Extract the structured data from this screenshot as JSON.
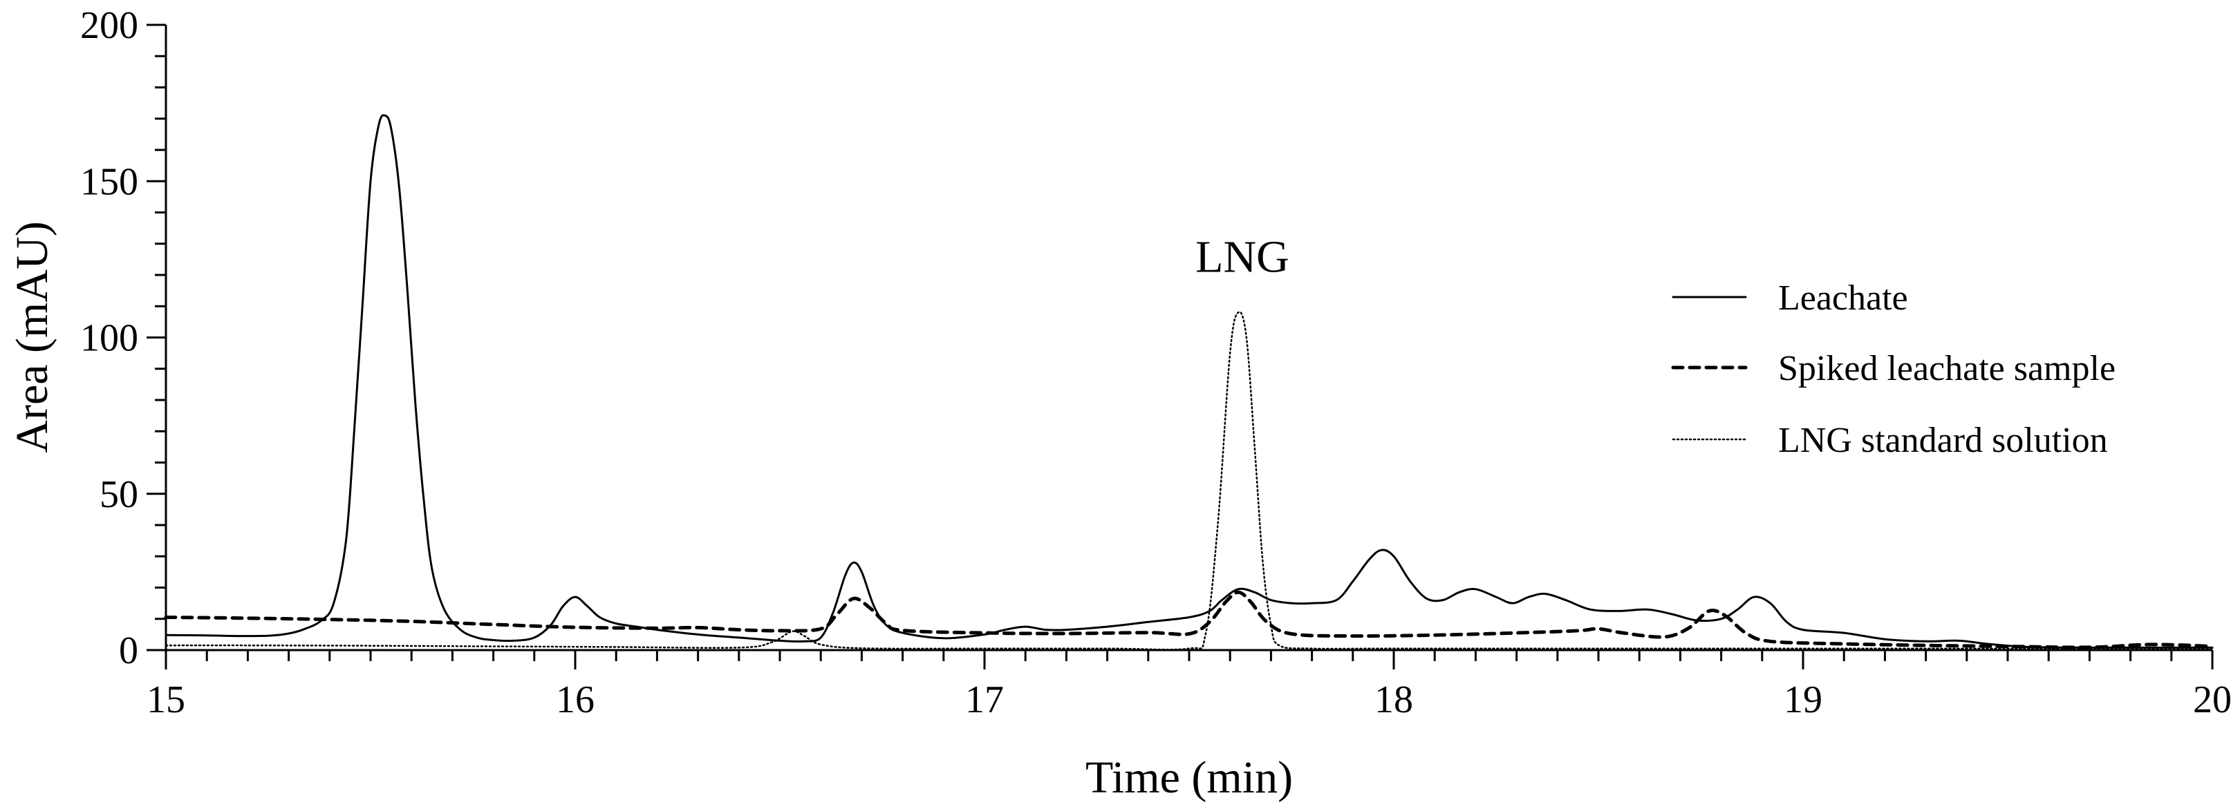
{
  "chart_data": {
    "type": "line",
    "title": "",
    "xlabel": "Time (min)",
    "ylabel": "Area (mAU)",
    "xlim": [
      15,
      20
    ],
    "ylim": [
      0,
      200
    ],
    "x_ticks": [
      15,
      16,
      17,
      18,
      19,
      20
    ],
    "y_ticks": [
      0,
      50,
      100,
      150,
      200
    ],
    "x_tick_labels": [
      "15",
      "16",
      "17",
      "18",
      "19",
      "20"
    ],
    "y_tick_labels": [
      "0",
      "50",
      "100",
      "150",
      "200"
    ],
    "grid": false,
    "legend_position": "right",
    "annotations": [
      {
        "text": "LNG",
        "x": 17.63,
        "y": 121
      }
    ],
    "series": [
      {
        "name": "Leachate",
        "style": "solid",
        "color": "#000000",
        "points": [
          [
            15.0,
            4.8
          ],
          [
            15.1,
            4.7
          ],
          [
            15.18,
            4.5
          ],
          [
            15.25,
            4.6
          ],
          [
            15.3,
            5.3
          ],
          [
            15.34,
            6.8
          ],
          [
            15.38,
            9.5
          ],
          [
            15.41,
            15
          ],
          [
            15.44,
            35
          ],
          [
            15.46,
            70
          ],
          [
            15.48,
            110
          ],
          [
            15.5,
            150
          ],
          [
            15.52,
            168
          ],
          [
            15.535,
            171
          ],
          [
            15.55,
            167
          ],
          [
            15.57,
            148
          ],
          [
            15.59,
            115
          ],
          [
            15.61,
            78
          ],
          [
            15.63,
            48
          ],
          [
            15.65,
            26
          ],
          [
            15.68,
            13
          ],
          [
            15.72,
            6.5
          ],
          [
            15.76,
            4.0
          ],
          [
            15.8,
            3.2
          ],
          [
            15.85,
            3.0
          ],
          [
            15.9,
            4.0
          ],
          [
            15.94,
            8
          ],
          [
            15.97,
            14
          ],
          [
            16.0,
            17
          ],
          [
            16.03,
            14
          ],
          [
            16.06,
            10.5
          ],
          [
            16.1,
            8.5
          ],
          [
            16.15,
            7.5
          ],
          [
            16.2,
            6.5
          ],
          [
            16.3,
            5.0
          ],
          [
            16.4,
            4.0
          ],
          [
            16.5,
            3.0
          ],
          [
            16.56,
            2.8
          ],
          [
            16.6,
            4.0
          ],
          [
            16.63,
            12
          ],
          [
            16.66,
            24
          ],
          [
            16.68,
            28
          ],
          [
            16.7,
            25
          ],
          [
            16.73,
            14
          ],
          [
            16.76,
            8
          ],
          [
            16.8,
            5.5
          ],
          [
            16.9,
            3.8
          ],
          [
            17.0,
            5.0
          ],
          [
            17.05,
            6.5
          ],
          [
            17.1,
            7.5
          ],
          [
            17.15,
            6.5
          ],
          [
            17.2,
            6.5
          ],
          [
            17.3,
            7.5
          ],
          [
            17.4,
            9.0
          ],
          [
            17.5,
            10.5
          ],
          [
            17.55,
            12.5
          ],
          [
            17.58,
            16
          ],
          [
            17.62,
            19.5
          ],
          [
            17.66,
            18.5
          ],
          [
            17.7,
            16
          ],
          [
            17.75,
            15
          ],
          [
            17.8,
            15
          ],
          [
            17.86,
            16
          ],
          [
            17.9,
            22
          ],
          [
            17.94,
            29
          ],
          [
            17.97,
            32
          ],
          [
            18.0,
            30
          ],
          [
            18.04,
            22
          ],
          [
            18.08,
            16.5
          ],
          [
            18.12,
            16
          ],
          [
            18.16,
            18.5
          ],
          [
            18.2,
            19.5
          ],
          [
            18.25,
            17
          ],
          [
            18.29,
            15
          ],
          [
            18.33,
            17
          ],
          [
            18.37,
            18
          ],
          [
            18.42,
            16
          ],
          [
            18.48,
            13
          ],
          [
            18.55,
            12.5
          ],
          [
            18.62,
            13
          ],
          [
            18.68,
            11.5
          ],
          [
            18.74,
            9.5
          ],
          [
            18.8,
            10
          ],
          [
            18.84,
            13
          ],
          [
            18.88,
            17
          ],
          [
            18.92,
            15
          ],
          [
            18.96,
            9
          ],
          [
            19.0,
            6.5
          ],
          [
            19.1,
            5.5
          ],
          [
            19.2,
            3.5
          ],
          [
            19.3,
            2.8
          ],
          [
            19.38,
            3.0
          ],
          [
            19.45,
            2.0
          ],
          [
            19.55,
            1.0
          ],
          [
            19.7,
            0.8
          ],
          [
            19.85,
            0.8
          ],
          [
            20.0,
            0.8
          ]
        ]
      },
      {
        "name": "Spiked leachate sample",
        "style": "dashed",
        "color": "#000000",
        "points": [
          [
            15.0,
            10.5
          ],
          [
            15.2,
            10.2
          ],
          [
            15.4,
            9.8
          ],
          [
            15.6,
            9.2
          ],
          [
            15.8,
            8.2
          ],
          [
            16.0,
            7.3
          ],
          [
            16.2,
            7.0
          ],
          [
            16.3,
            7.2
          ],
          [
            16.4,
            6.5
          ],
          [
            16.5,
            6.2
          ],
          [
            16.6,
            6.8
          ],
          [
            16.64,
            11.5
          ],
          [
            16.68,
            16.5
          ],
          [
            16.72,
            13.5
          ],
          [
            16.76,
            8.5
          ],
          [
            16.8,
            6.3
          ],
          [
            17.0,
            5.5
          ],
          [
            17.2,
            5.3
          ],
          [
            17.4,
            5.6
          ],
          [
            17.5,
            5.2
          ],
          [
            17.55,
            9
          ],
          [
            17.59,
            15.5
          ],
          [
            17.62,
            18.5
          ],
          [
            17.65,
            15.5
          ],
          [
            17.69,
            9
          ],
          [
            17.75,
            5.2
          ],
          [
            17.9,
            4.5
          ],
          [
            18.1,
            4.8
          ],
          [
            18.3,
            5.5
          ],
          [
            18.45,
            6.2
          ],
          [
            18.5,
            6.8
          ],
          [
            18.56,
            5.5
          ],
          [
            18.66,
            4.2
          ],
          [
            18.72,
            7
          ],
          [
            18.77,
            12.5
          ],
          [
            18.81,
            11
          ],
          [
            18.86,
            5.5
          ],
          [
            18.92,
            2.8
          ],
          [
            19.1,
            2.0
          ],
          [
            19.3,
            1.5
          ],
          [
            19.5,
            1.2
          ],
          [
            19.7,
            0.9
          ],
          [
            19.85,
            1.8
          ],
          [
            20.0,
            1.2
          ]
        ]
      },
      {
        "name": "LNG standard solution",
        "style": "dotted",
        "color": "#000000",
        "points": [
          [
            15.0,
            1.5
          ],
          [
            15.2,
            1.5
          ],
          [
            15.5,
            1.4
          ],
          [
            15.8,
            1.2
          ],
          [
            16.1,
            1.0
          ],
          [
            16.4,
            0.8
          ],
          [
            16.48,
            2.5
          ],
          [
            16.53,
            6.0
          ],
          [
            16.56,
            4.5
          ],
          [
            16.6,
            1.8
          ],
          [
            16.7,
            0.6
          ],
          [
            17.0,
            0.5
          ],
          [
            17.3,
            0.5
          ],
          [
            17.5,
            0.5
          ],
          [
            17.54,
            5
          ],
          [
            17.57,
            40
          ],
          [
            17.6,
            95
          ],
          [
            17.62,
            108
          ],
          [
            17.64,
            100
          ],
          [
            17.66,
            65
          ],
          [
            17.68,
            28
          ],
          [
            17.7,
            8
          ],
          [
            17.72,
            1.5
          ],
          [
            17.8,
            0.5
          ],
          [
            18.0,
            0.5
          ],
          [
            18.5,
            0.5
          ],
          [
            19.0,
            0.5
          ],
          [
            19.5,
            0.5
          ],
          [
            20.0,
            0.5
          ]
        ]
      }
    ]
  }
}
